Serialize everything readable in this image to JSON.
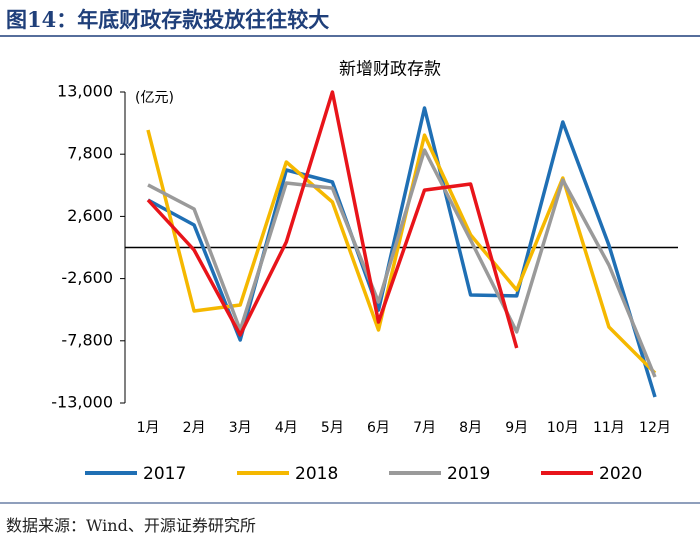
{
  "header": {
    "title": "图14：年底财政存款投放往往较大"
  },
  "chart_data": {
    "type": "line",
    "title": "新增财政存款",
    "y_unit_label": "(亿元)",
    "categories": [
      "1月",
      "2月",
      "3月",
      "4月",
      "5月",
      "6月",
      "7月",
      "8月",
      "9月",
      "10月",
      "11月",
      "12月"
    ],
    "ylim": [
      -13000,
      13000
    ],
    "yticks": [
      {
        "value": -13000,
        "label": "-13,000"
      },
      {
        "value": -7800,
        "label": "-7,800"
      },
      {
        "value": -2600,
        "label": "-2,600"
      },
      {
        "value": 2600,
        "label": "2,600"
      },
      {
        "value": 7800,
        "label": "7,800"
      },
      {
        "value": 13000,
        "label": "13,000"
      }
    ],
    "series": [
      {
        "name": "2017",
        "color": "#1f6fb4",
        "values": [
          3970,
          1880,
          -7730,
          6480,
          5480,
          -5230,
          11660,
          -3970,
          -4050,
          10490,
          200,
          -12500
        ]
      },
      {
        "name": "2018",
        "color": "#f5b800",
        "values": [
          9820,
          -5310,
          -4810,
          7150,
          3800,
          -6900,
          9400,
          1050,
          -3550,
          5810,
          -6650,
          -10490
        ]
      },
      {
        "name": "2019",
        "color": "#9a9a9a",
        "values": [
          5230,
          3220,
          -6900,
          5390,
          4970,
          -4560,
          8150,
          630,
          -7060,
          5640,
          -1460,
          -10830
        ]
      },
      {
        "name": "2020",
        "color": "#e8141a",
        "values": [
          3970,
          -210,
          -7310,
          460,
          13000,
          -6230,
          4800,
          5310,
          -8400,
          null,
          null,
          null
        ]
      }
    ]
  },
  "footer": {
    "source": "数据来源：Wind、开源证券研究所"
  }
}
